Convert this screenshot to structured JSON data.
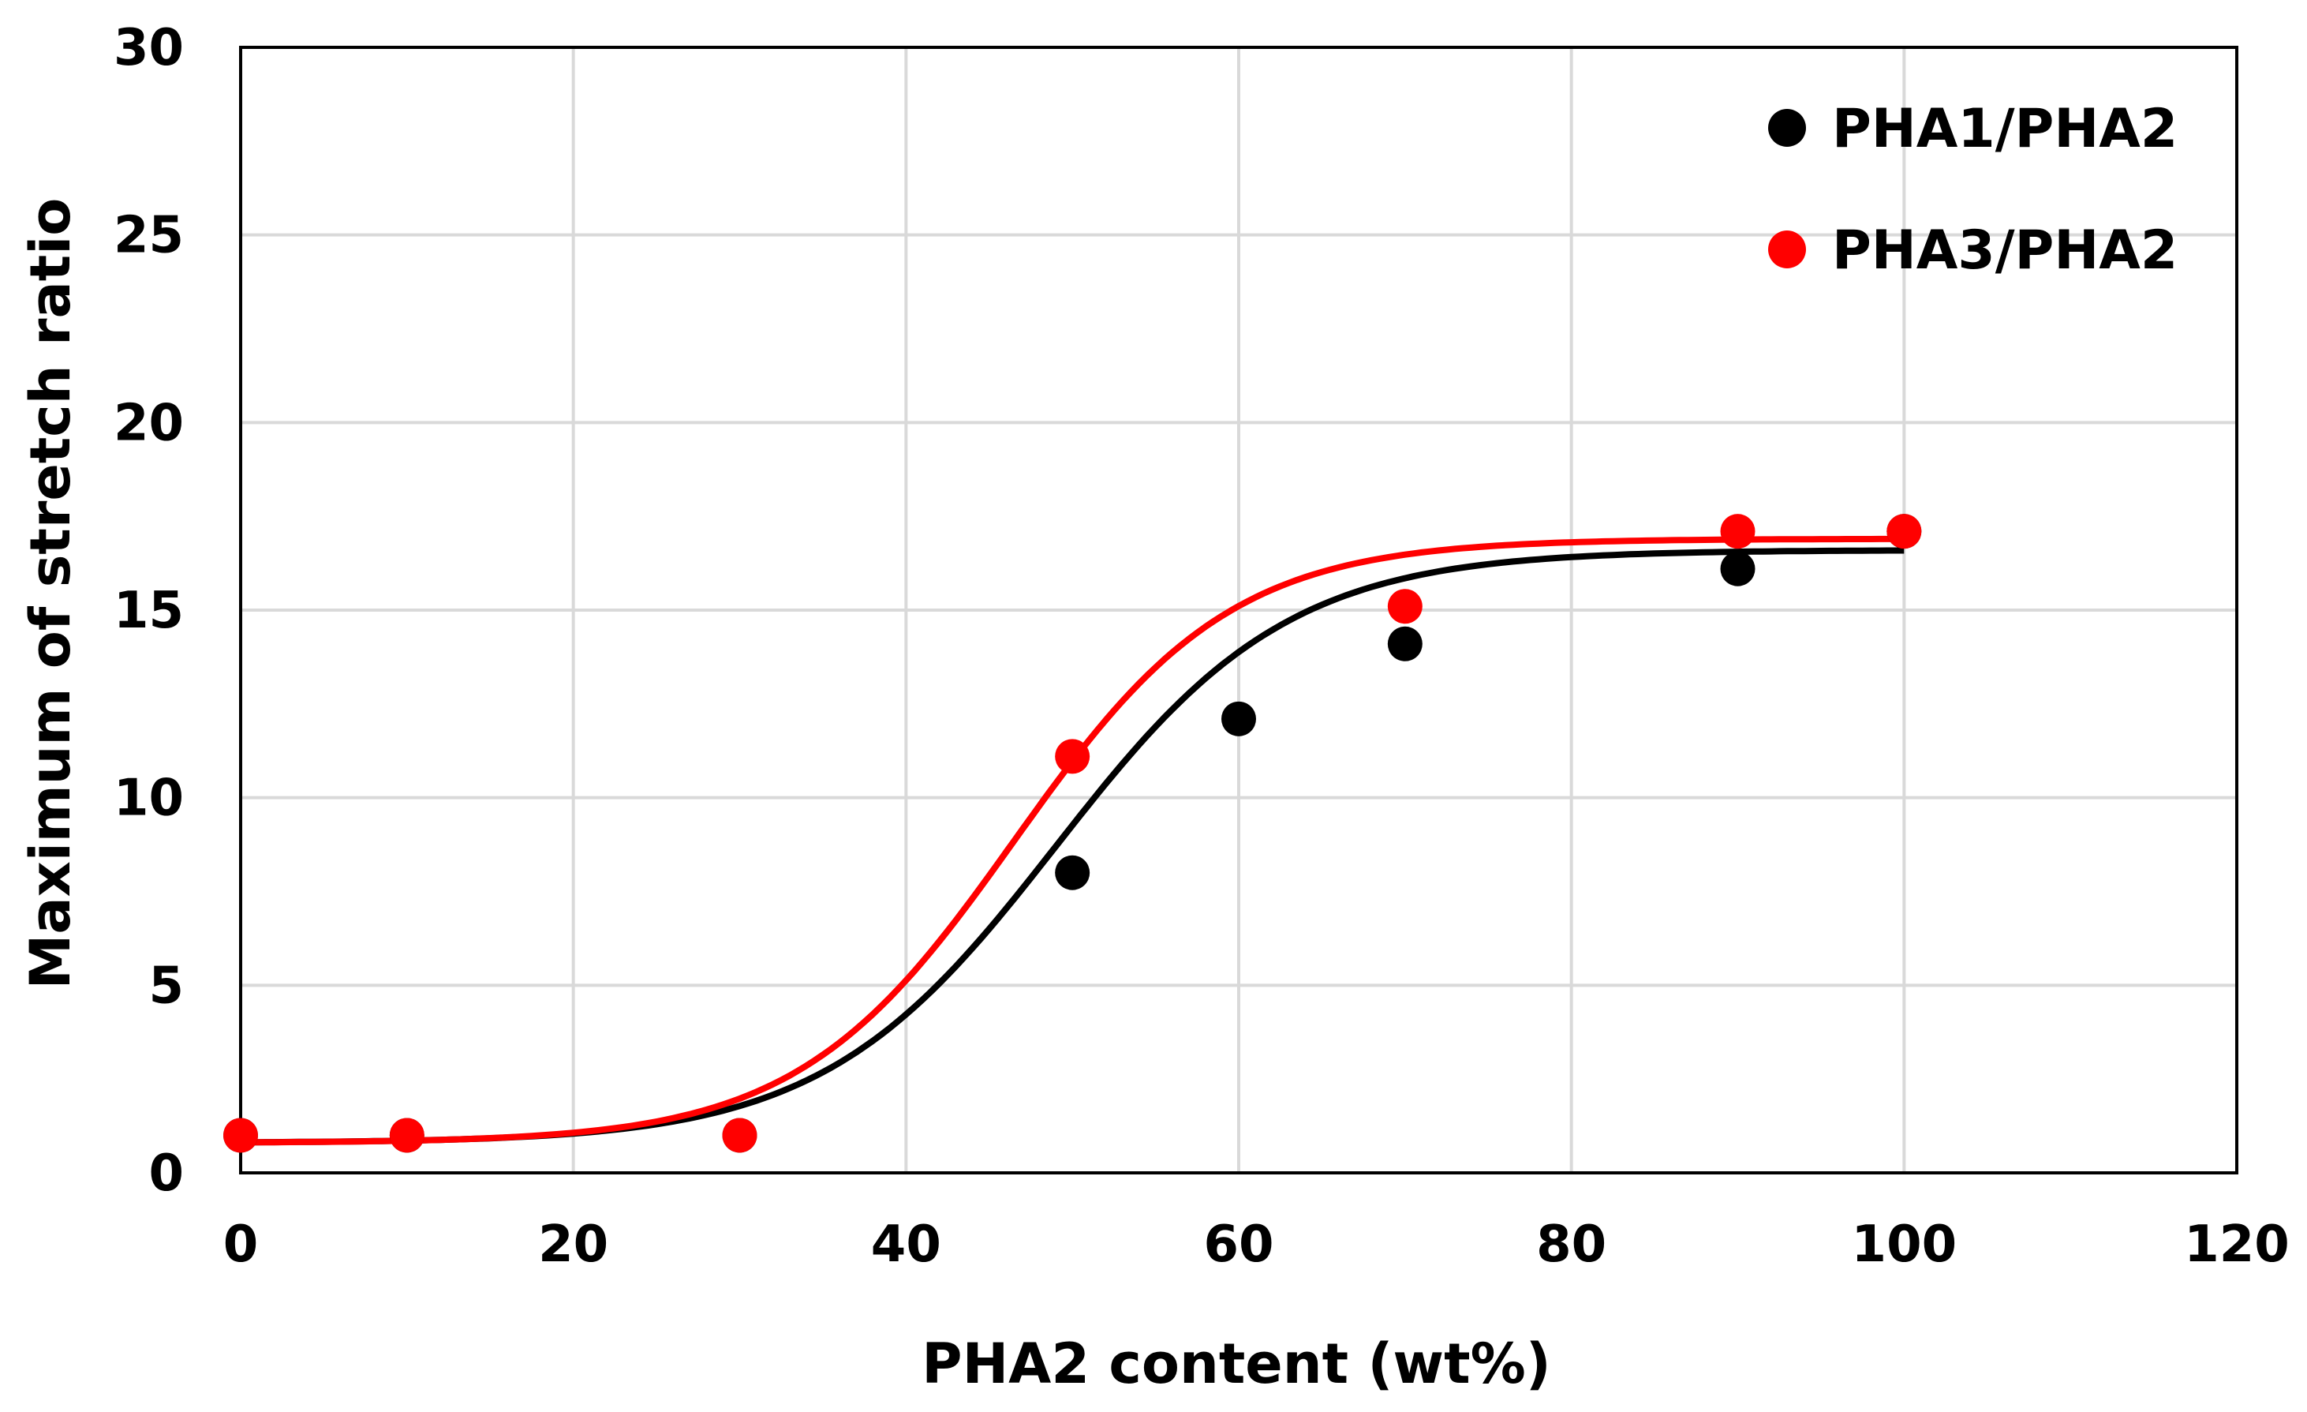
{
  "chart_data": {
    "type": "scatter",
    "title": "",
    "xlabel": "PHA2 content (wt%)",
    "ylabel": "Maximum of stretch ratio",
    "xlim": [
      0,
      120
    ],
    "ylim": [
      0,
      30
    ],
    "x_ticks": [
      0,
      20,
      40,
      60,
      80,
      100,
      120
    ],
    "y_ticks": [
      0,
      5,
      10,
      15,
      20,
      25,
      30
    ],
    "grid": true,
    "legend_position": "top-right",
    "series": [
      {
        "name": "PHA1/PHA2",
        "color": "#000000",
        "x": [
          0,
          10,
          30,
          50,
          60,
          70,
          90,
          100
        ],
        "y": [
          1.0,
          1.0,
          1.0,
          8.0,
          12.1,
          14.1,
          16.1,
          17.1
        ],
        "fit": {
          "type": "sigmoid",
          "low": 0.8,
          "high": 16.6,
          "center": 49,
          "scale": 7
        }
      },
      {
        "name": "PHA3/PHA2",
        "color": "#ff0000",
        "x": [
          0,
          10,
          30,
          50,
          70,
          90,
          100
        ],
        "y": [
          1.0,
          1.0,
          1.0,
          11.1,
          15.1,
          17.1,
          17.1
        ],
        "fit": {
          "type": "sigmoid",
          "low": 0.8,
          "high": 16.9,
          "center": 46.5,
          "scale": 6.5
        }
      }
    ]
  }
}
